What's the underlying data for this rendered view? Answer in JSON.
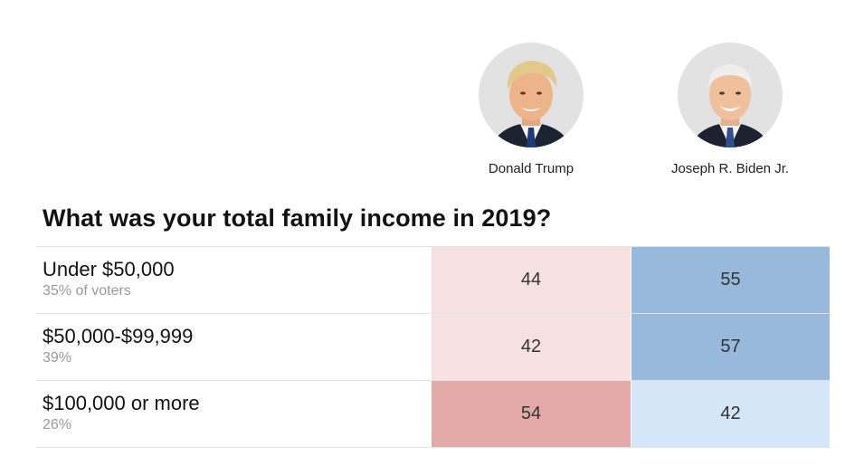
{
  "candidates": [
    {
      "name": "Donald Trump",
      "avatar": "trump-portrait"
    },
    {
      "name": "Joseph R. Biden Jr.",
      "avatar": "biden-portrait"
    }
  ],
  "chart_data": {
    "type": "table",
    "title": "What was your total family income in 2019?",
    "columns": [
      "Donald Trump",
      "Joseph R. Biden Jr."
    ],
    "rows": [
      {
        "label": "Under $50,000",
        "share": "35% of voters",
        "values": [
          44,
          55
        ],
        "colors": [
          "#f7e0e0",
          "#98b8dc"
        ]
      },
      {
        "label": "$50,000-$99,999",
        "share": "39%",
        "values": [
          42,
          57
        ],
        "colors": [
          "#f7e0e0",
          "#98b8dc"
        ]
      },
      {
        "label": "$100,000 or more",
        "share": "26%",
        "values": [
          54,
          42
        ],
        "colors": [
          "#e4a9a9",
          "#d5e6f8"
        ]
      }
    ]
  }
}
